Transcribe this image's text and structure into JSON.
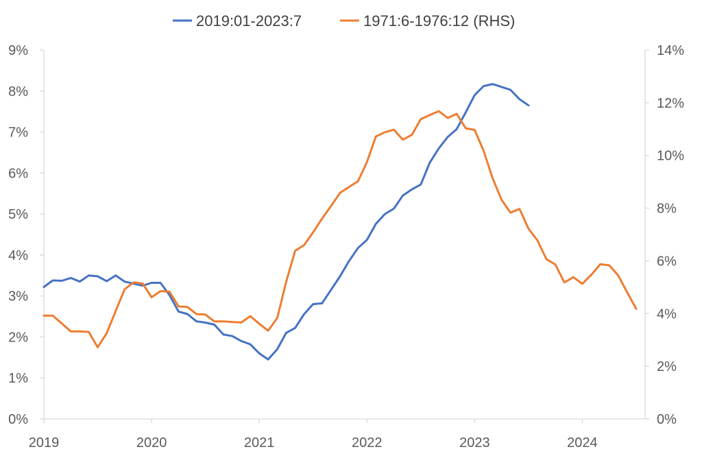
{
  "chart_data": {
    "type": "line",
    "legend": {
      "position": "top"
    },
    "colors": {
      "series_a": "#4472C4",
      "series_b": "#ED7D31",
      "axis": "#D9D9D9",
      "text": "#595959"
    },
    "y_left": {
      "ylim": [
        0,
        9
      ],
      "ticks": [
        0,
        1,
        2,
        3,
        4,
        5,
        6,
        7,
        8,
        9
      ],
      "tick_labels": [
        "0%",
        "1%",
        "2%",
        "3%",
        "4%",
        "5%",
        "6%",
        "7%",
        "8%",
        "9%"
      ]
    },
    "y_right": {
      "ylim": [
        0,
        14
      ],
      "ticks": [
        0,
        2,
        4,
        6,
        8,
        10,
        12,
        14
      ],
      "tick_labels": [
        "0%",
        "2%",
        "4%",
        "6%",
        "8%",
        "10%",
        "12%",
        "14%"
      ]
    },
    "x_axis": {
      "xlim": [
        2019,
        2024.583
      ],
      "ticks": [
        2019,
        2020,
        2021,
        2022,
        2023,
        2024
      ],
      "tick_labels": [
        "2019",
        "2020",
        "2021",
        "2022",
        "2023",
        "2024"
      ]
    },
    "grid": false,
    "series": [
      {
        "name": "2019:01-2023:7",
        "axis": "left",
        "x": [
          2019.0,
          2019.083,
          2019.167,
          2019.25,
          2019.333,
          2019.417,
          2019.5,
          2019.583,
          2019.667,
          2019.75,
          2019.833,
          2019.917,
          2020.0,
          2020.083,
          2020.167,
          2020.25,
          2020.333,
          2020.417,
          2020.5,
          2020.583,
          2020.667,
          2020.75,
          2020.833,
          2020.917,
          2021.0,
          2021.083,
          2021.167,
          2021.25,
          2021.333,
          2021.417,
          2021.5,
          2021.583,
          2021.667,
          2021.75,
          2021.833,
          2021.917,
          2022.0,
          2022.083,
          2022.167,
          2022.25,
          2022.333,
          2022.417,
          2022.5,
          2022.583,
          2022.667,
          2022.75,
          2022.833,
          2022.917,
          2023.0,
          2023.083,
          2023.167,
          2023.25,
          2023.333,
          2023.417,
          2023.5
        ],
        "y": [
          3.22,
          3.38,
          3.37,
          3.44,
          3.35,
          3.5,
          3.48,
          3.36,
          3.5,
          3.35,
          3.3,
          3.25,
          3.32,
          3.32,
          3.02,
          2.62,
          2.56,
          2.38,
          2.35,
          2.3,
          2.06,
          2.02,
          1.9,
          1.82,
          1.6,
          1.45,
          1.7,
          2.1,
          2.22,
          2.56,
          2.8,
          2.82,
          3.15,
          3.48,
          3.85,
          4.17,
          4.37,
          4.76,
          5.0,
          5.13,
          5.45,
          5.6,
          5.72,
          6.25,
          6.6,
          6.88,
          7.07,
          7.48,
          7.9,
          8.12,
          8.17,
          8.1,
          8.03,
          7.8,
          7.65
        ]
      },
      {
        "name": "1971:6-1976:12 (RHS)",
        "axis": "right",
        "x": [
          2019.0,
          2019.083,
          2019.167,
          2019.25,
          2019.333,
          2019.417,
          2019.5,
          2019.583,
          2019.667,
          2019.75,
          2019.833,
          2019.917,
          2020.0,
          2020.083,
          2020.167,
          2020.25,
          2020.333,
          2020.417,
          2020.5,
          2020.583,
          2020.667,
          2020.75,
          2020.833,
          2020.917,
          2021.0,
          2021.083,
          2021.167,
          2021.25,
          2021.333,
          2021.417,
          2021.5,
          2021.583,
          2021.667,
          2021.75,
          2021.833,
          2021.917,
          2022.0,
          2022.083,
          2022.167,
          2022.25,
          2022.333,
          2022.417,
          2022.5,
          2022.583,
          2022.667,
          2022.75,
          2022.833,
          2022.917,
          2023.0,
          2023.083,
          2023.167,
          2023.25,
          2023.333,
          2023.417,
          2023.5,
          2023.583,
          2023.667,
          2023.75,
          2023.833,
          2023.917,
          2024.0,
          2024.083,
          2024.167,
          2024.25,
          2024.333,
          2024.417,
          2024.5
        ],
        "y": [
          3.92,
          3.92,
          3.62,
          3.32,
          3.32,
          3.3,
          2.72,
          3.25,
          4.1,
          4.92,
          5.18,
          5.14,
          4.62,
          4.85,
          4.83,
          4.27,
          4.25,
          3.98,
          3.96,
          3.7,
          3.7,
          3.68,
          3.66,
          3.9,
          3.61,
          3.35,
          3.83,
          5.2,
          6.38,
          6.6,
          7.08,
          7.6,
          8.08,
          8.58,
          8.8,
          9.02,
          9.75,
          10.72,
          10.88,
          10.98,
          10.6,
          10.78,
          11.38,
          11.53,
          11.68,
          11.42,
          11.58,
          11.03,
          10.97,
          10.18,
          9.13,
          8.32,
          7.83,
          7.97,
          7.22,
          6.78,
          6.06,
          5.86,
          5.18,
          5.38,
          5.13,
          5.47,
          5.87,
          5.83,
          5.45,
          4.8,
          4.18
        ]
      }
    ]
  }
}
